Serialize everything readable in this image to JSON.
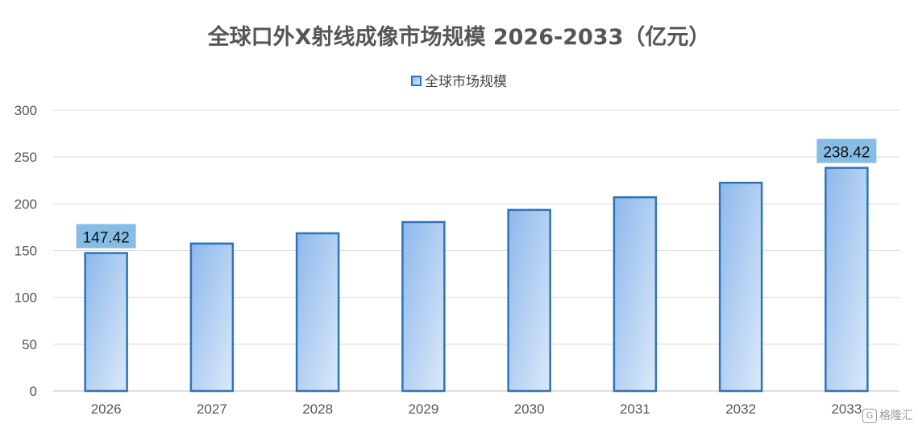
{
  "chart_data": {
    "type": "bar",
    "title": "全球口外X射线成像市场规模 2026-2033（亿元）",
    "legend": {
      "position": "top",
      "entries": [
        "全球市场规模"
      ]
    },
    "categories": [
      "2026",
      "2027",
      "2028",
      "2029",
      "2030",
      "2031",
      "2032",
      "2033"
    ],
    "series": [
      {
        "name": "全球市场规模",
        "values": [
          147.42,
          157.5,
          168.5,
          180.5,
          193.5,
          207.0,
          222.5,
          238.42
        ]
      }
    ],
    "data_labels": [
      {
        "category": "2026",
        "text": "147.42"
      },
      {
        "category": "2033",
        "text": "238.42"
      }
    ],
    "ylim": [
      0,
      300
    ],
    "yticks": [
      0,
      50,
      100,
      150,
      200,
      250,
      300
    ],
    "grid": true,
    "colors": {
      "bar_border": "#2e75b6",
      "bar_fill_start": "#8db8ec",
      "bar_fill_end": "#d7e7f8",
      "label_bg": "#86bde6",
      "grid": "#d9d9d9"
    }
  },
  "watermark": {
    "icon": "gelonghui-logo-icon",
    "text": "格隆汇"
  }
}
